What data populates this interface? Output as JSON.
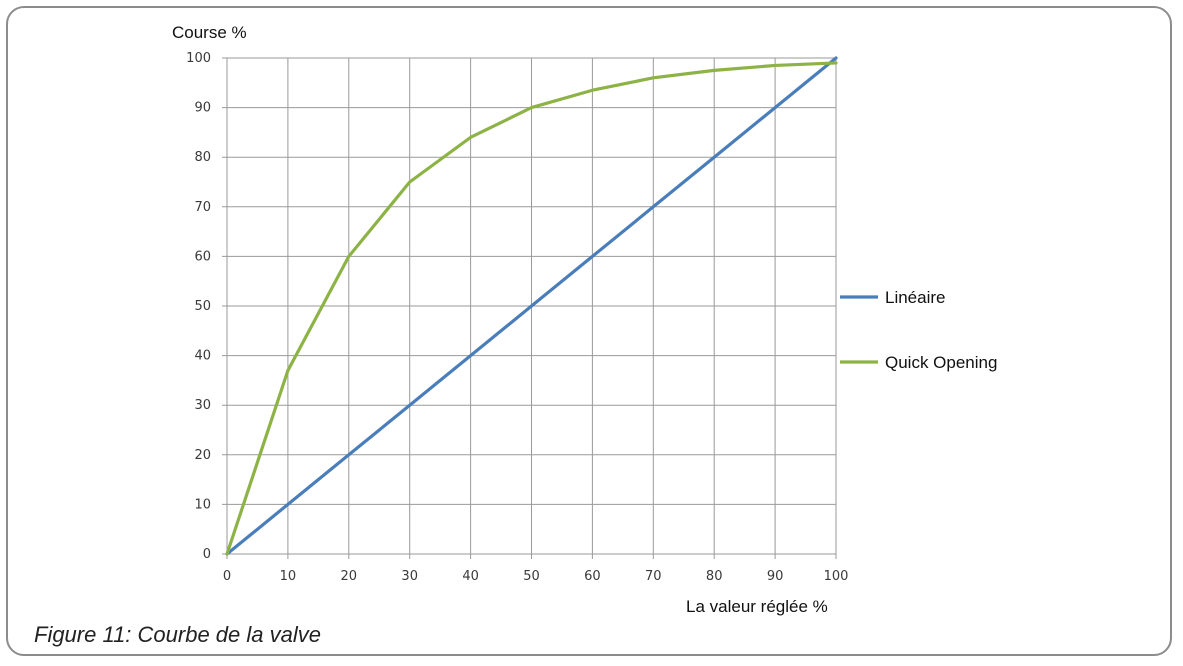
{
  "caption": "Figure 11: Courbe de la valve",
  "chart_data": {
    "type": "line",
    "xlabel": "La valeur réglée %",
    "ylabel": "Course %",
    "xlim": [
      0,
      100
    ],
    "ylim": [
      0,
      100
    ],
    "x_ticks": [
      0,
      10,
      20,
      30,
      40,
      50,
      60,
      70,
      80,
      90,
      100
    ],
    "y_ticks": [
      0,
      10,
      20,
      30,
      40,
      50,
      60,
      70,
      80,
      90,
      100
    ],
    "grid": true,
    "legend_position": "right",
    "series": [
      {
        "name": "Linéaire",
        "color": "#4a7ebb",
        "x": [
          0,
          10,
          20,
          30,
          40,
          50,
          60,
          70,
          80,
          90,
          100
        ],
        "y": [
          0,
          10,
          20,
          30,
          40,
          50,
          60,
          70,
          80,
          90,
          100
        ]
      },
      {
        "name": "Quick Opening",
        "color": "#8db346",
        "x": [
          0,
          10,
          20,
          30,
          40,
          50,
          60,
          70,
          80,
          90,
          100
        ],
        "y": [
          0,
          37,
          60,
          75,
          84,
          90,
          93.5,
          96,
          97.5,
          98.5,
          99
        ]
      }
    ]
  }
}
